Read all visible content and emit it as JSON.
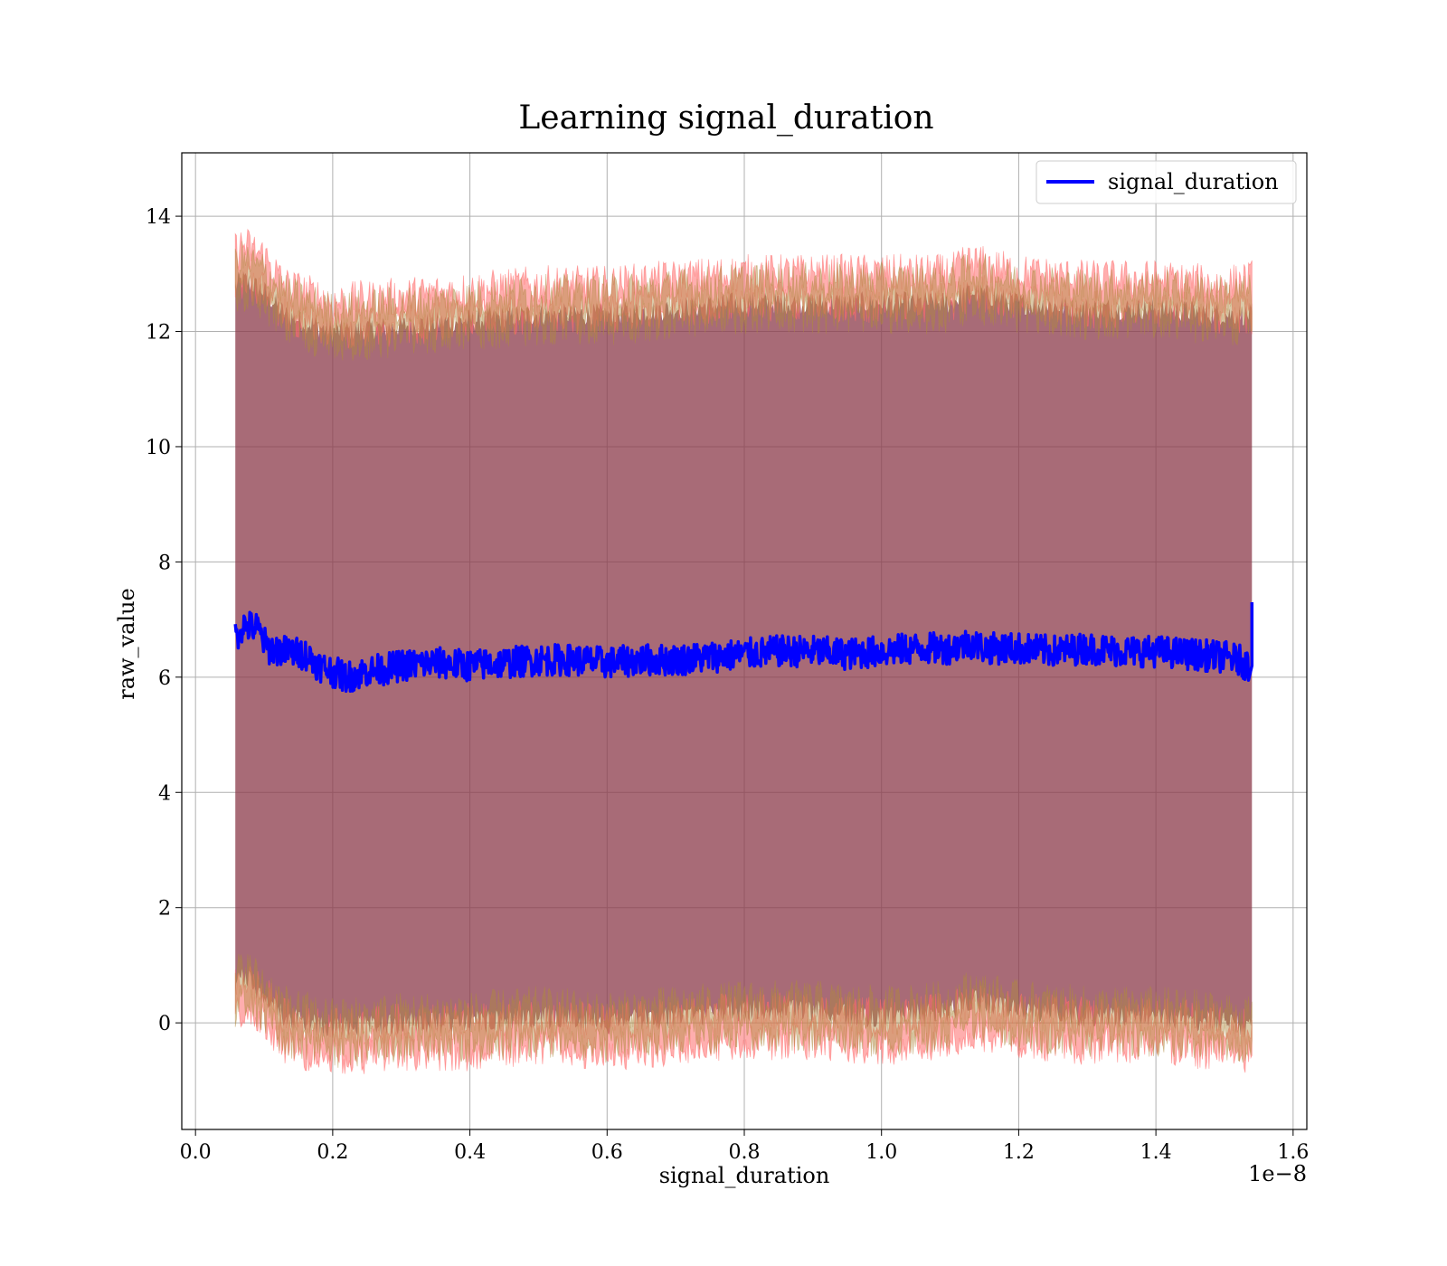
{
  "chart_data": {
    "type": "line",
    "title": "Learning signal_duration",
    "xlabel": "signal_duration",
    "ylabel": "raw_value",
    "x_offset_label": "1e−8",
    "xlim": [
      -0.02,
      1.62
    ],
    "ylim": [
      -1.85,
      15.1
    ],
    "x_ticks": [
      0.0,
      0.2,
      0.4,
      0.6,
      0.8,
      1.0,
      1.2,
      1.4,
      1.6
    ],
    "x_tick_labels": [
      "0.0",
      "0.2",
      "0.4",
      "0.6",
      "0.8",
      "1.0",
      "1.2",
      "1.4",
      "1.6"
    ],
    "y_ticks": [
      0,
      2,
      4,
      6,
      8,
      10,
      12,
      14
    ],
    "y_tick_labels": [
      "0",
      "2",
      "4",
      "6",
      "8",
      "10",
      "12",
      "14"
    ],
    "grid": true,
    "legend_position": "top-right",
    "series": [
      {
        "name": "signal_duration",
        "color": "#0000ff",
        "x": [
          0.058,
          0.07,
          0.09,
          0.105,
          0.13,
          0.16,
          0.18,
          0.2,
          0.22,
          0.25,
          0.28,
          0.3,
          0.35,
          0.4,
          0.45,
          0.5,
          0.55,
          0.6,
          0.65,
          0.7,
          0.75,
          0.8,
          0.85,
          0.9,
          0.95,
          1.0,
          1.05,
          1.1,
          1.13,
          1.15,
          1.2,
          1.25,
          1.3,
          1.35,
          1.4,
          1.45,
          1.5,
          1.52,
          1.535,
          1.54
        ],
        "y": [
          6.7,
          6.9,
          6.85,
          6.5,
          6.45,
          6.4,
          6.2,
          6.1,
          6.0,
          6.1,
          6.15,
          6.2,
          6.25,
          6.2,
          6.25,
          6.3,
          6.3,
          6.25,
          6.3,
          6.3,
          6.35,
          6.4,
          6.45,
          6.45,
          6.4,
          6.45,
          6.5,
          6.5,
          6.6,
          6.5,
          6.5,
          6.45,
          6.5,
          6.45,
          6.45,
          6.4,
          6.35,
          6.3,
          6.2,
          7.3
        ]
      }
    ],
    "band_upper": {
      "color": "#8b3a4a",
      "x": [
        0.058,
        0.07,
        0.1,
        0.13,
        0.2,
        0.3,
        0.4,
        0.5,
        0.6,
        0.7,
        0.8,
        0.9,
        1.0,
        1.1,
        1.13,
        1.2,
        1.3,
        1.4,
        1.5,
        1.54
      ],
      "outer": [
        13.4,
        13.5,
        13.3,
        12.8,
        12.5,
        12.6,
        12.7,
        12.8,
        12.8,
        12.9,
        13.0,
        13.0,
        13.0,
        13.0,
        13.2,
        13.0,
        12.9,
        12.9,
        12.8,
        12.9
      ],
      "inner": [
        12.8,
        12.9,
        12.7,
        12.3,
        12.0,
        12.1,
        12.2,
        12.3,
        12.3,
        12.4,
        12.5,
        12.5,
        12.5,
        12.5,
        12.7,
        12.5,
        12.4,
        12.4,
        12.3,
        12.3
      ]
    },
    "band_lower": {
      "x": [
        0.058,
        0.07,
        0.1,
        0.13,
        0.2,
        0.3,
        0.4,
        0.5,
        0.6,
        0.7,
        0.8,
        0.9,
        1.0,
        1.1,
        1.13,
        1.2,
        1.3,
        1.4,
        1.5,
        1.54
      ],
      "outer": [
        0.1,
        0.3,
        0.0,
        -0.4,
        -0.6,
        -0.5,
        -0.5,
        -0.4,
        -0.5,
        -0.4,
        -0.3,
        -0.3,
        -0.4,
        -0.3,
        -0.1,
        -0.3,
        -0.4,
        -0.4,
        -0.5,
        -0.6
      ],
      "inner": [
        0.6,
        0.8,
        0.5,
        0.1,
        -0.1,
        0.0,
        0.0,
        0.1,
        0.0,
        0.1,
        0.2,
        0.2,
        0.1,
        0.2,
        0.4,
        0.2,
        0.1,
        0.1,
        0.0,
        -0.1
      ]
    }
  }
}
